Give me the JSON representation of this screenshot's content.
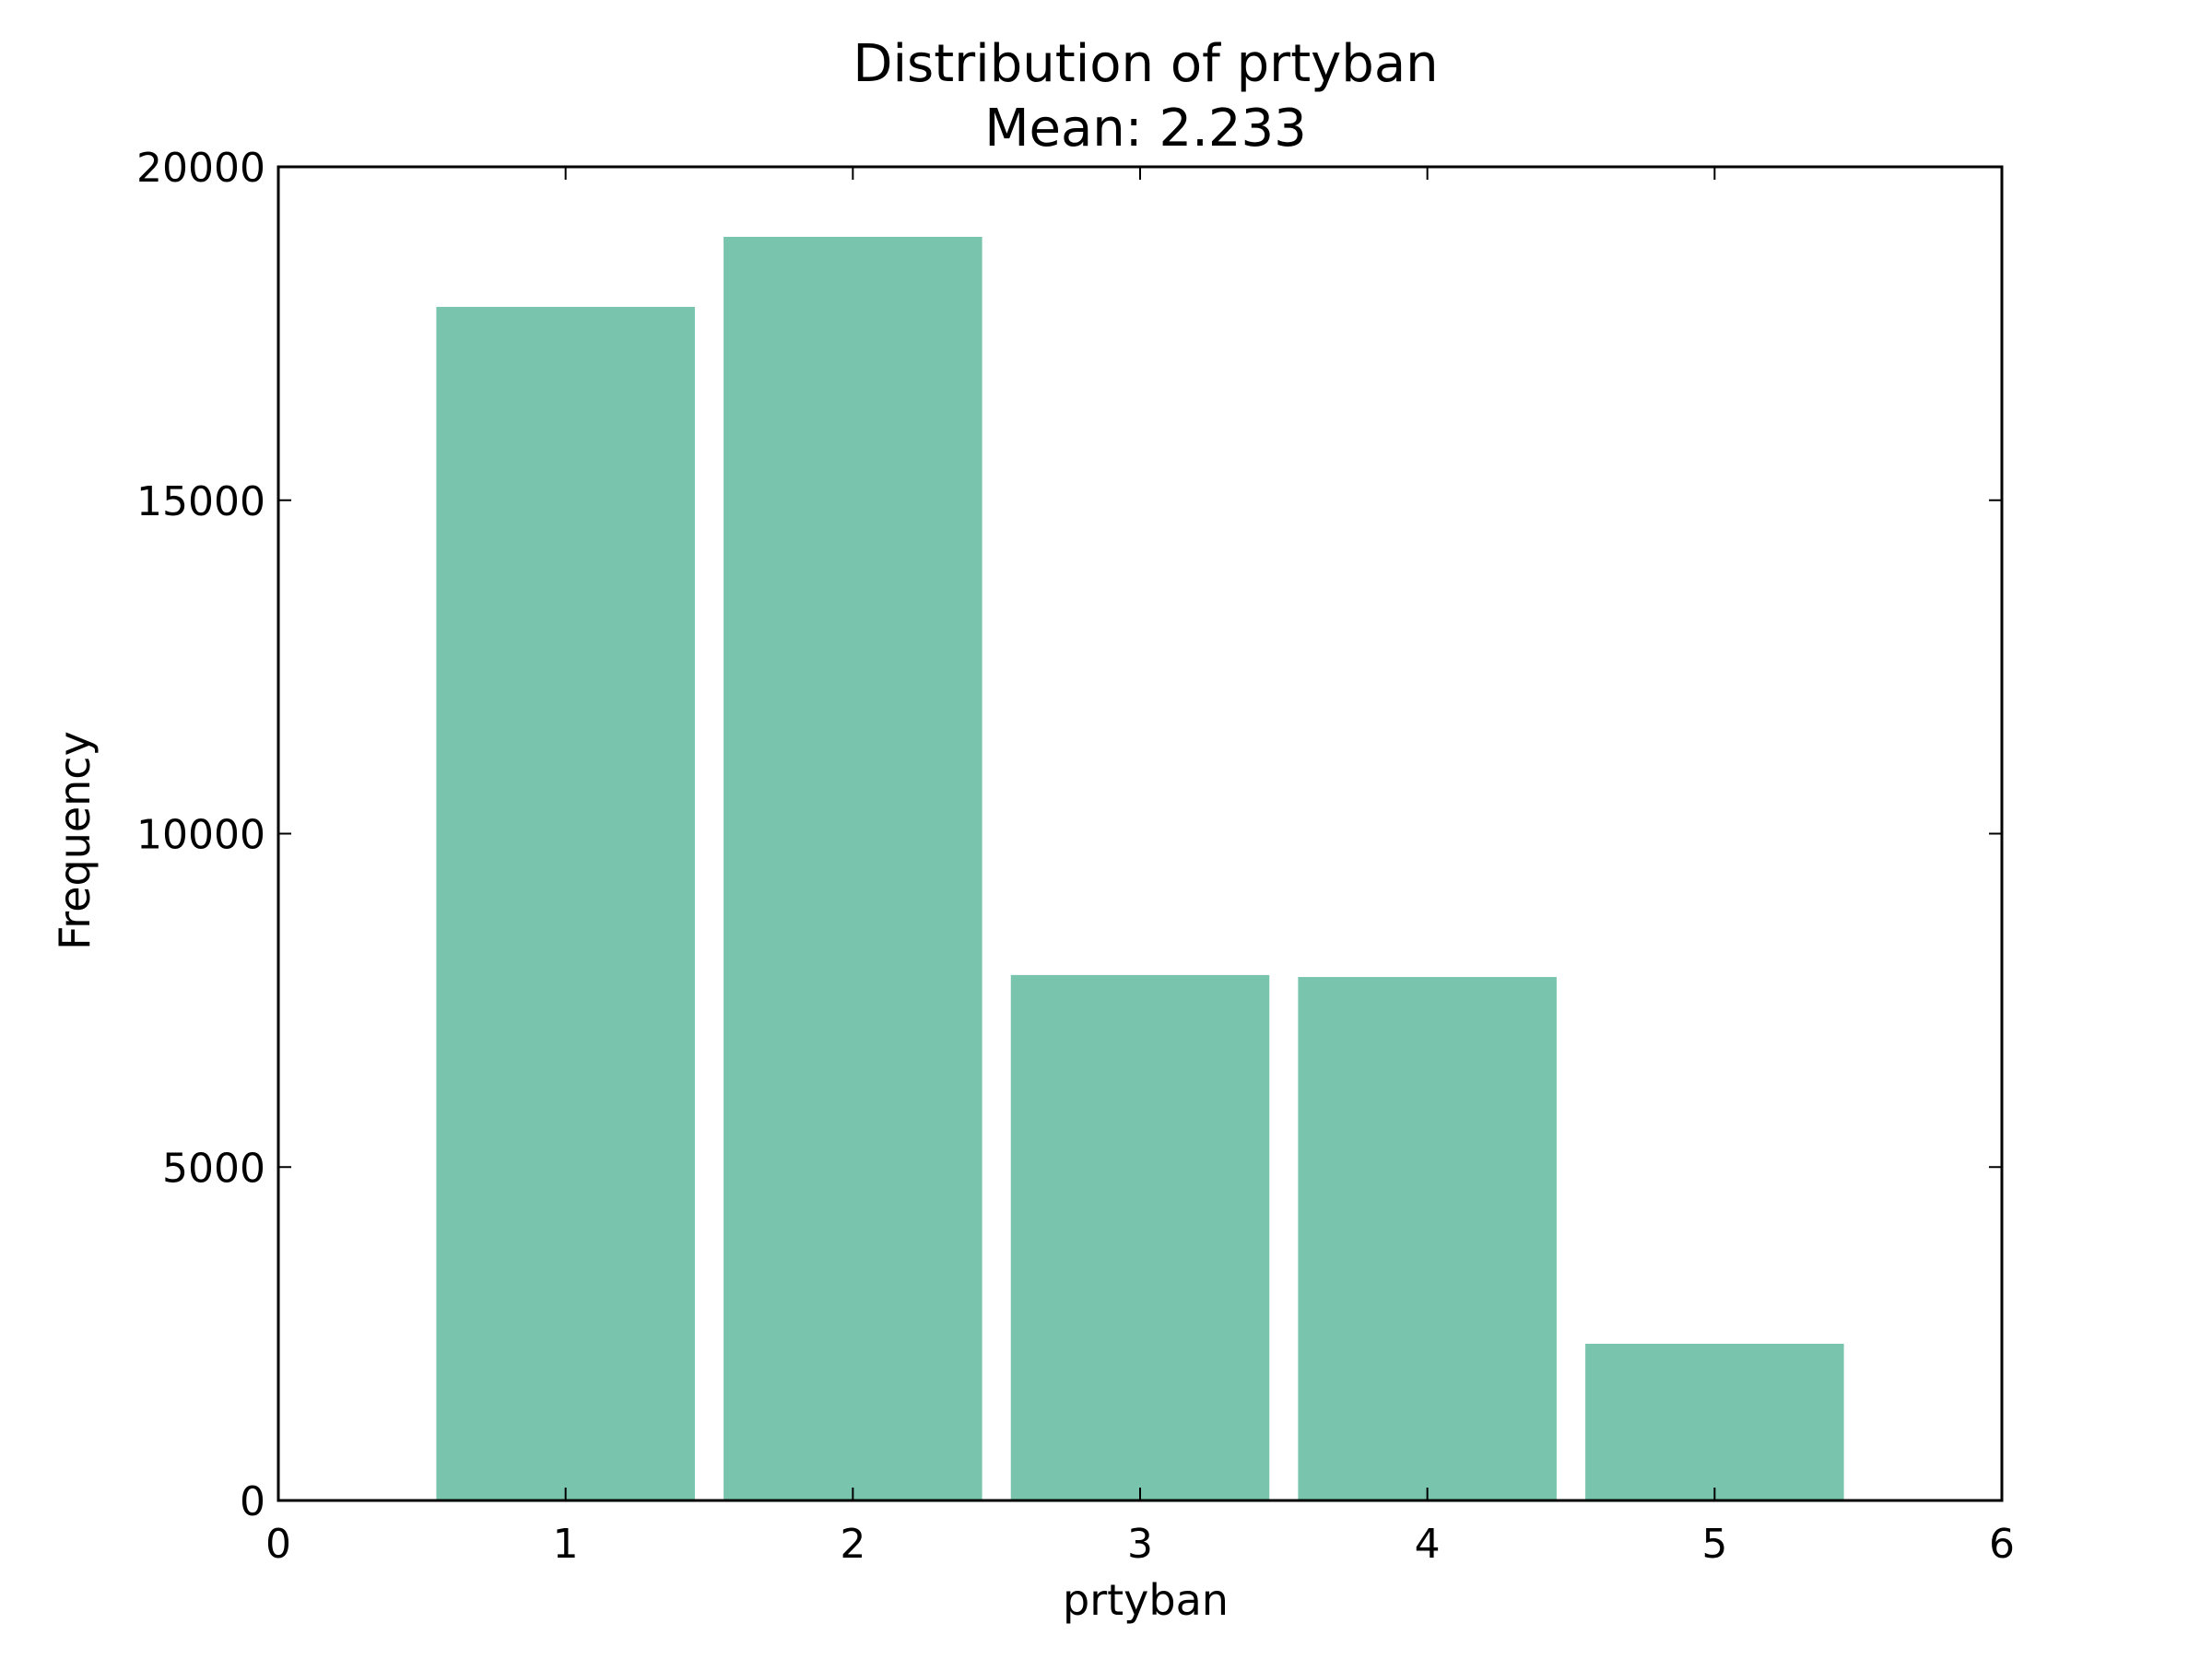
{
  "chart_data": {
    "type": "bar",
    "title": "Distribution of prtyban",
    "subtitle": "Mean: 2.233",
    "xlabel": "prtyban",
    "ylabel": "Frequency",
    "categories": [
      1,
      2,
      3,
      4,
      5
    ],
    "values": [
      17900,
      18950,
      7880,
      7850,
      2350
    ],
    "bar_width": 0.9,
    "xlim": [
      0,
      6
    ],
    "ylim": [
      0,
      20000
    ],
    "xticks": [
      0,
      1,
      2,
      3,
      4,
      5,
      6
    ],
    "yticks": [
      0,
      5000,
      10000,
      15000,
      20000
    ],
    "grid": false,
    "bar_color": "#78c4ad",
    "axis_color": "#000000"
  }
}
